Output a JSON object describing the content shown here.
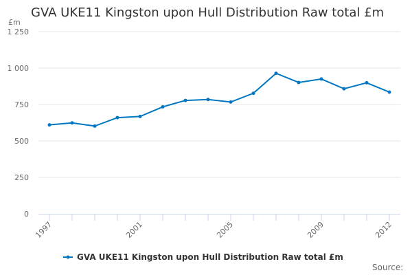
{
  "chart_data": {
    "type": "line",
    "title": "GVA UKE11 Kingston upon Hull Distribution Raw total £m",
    "ylabel": "£m",
    "xlabel": "",
    "x": [
      1997,
      1998,
      1999,
      2000,
      2001,
      2002,
      2003,
      2004,
      2005,
      2006,
      2007,
      2008,
      2009,
      2010,
      2011,
      2012
    ],
    "x_tick_labels": [
      "1997",
      "2001",
      "2005",
      "2009",
      "2012"
    ],
    "y_ticks": [
      0,
      250,
      500,
      750,
      1000,
      1250
    ],
    "y_tick_labels": [
      "0",
      "250",
      "500",
      "750",
      "1 000",
      "1 250"
    ],
    "ylim": [
      0,
      1250
    ],
    "grid": "horizontal",
    "legend_position": "bottom",
    "series": [
      {
        "name": "GVA UKE11 Kingston upon Hull Distribution Raw total £m",
        "color": "#0077c0",
        "values": [
          610,
          624,
          602,
          660,
          668,
          734,
          778,
          784,
          767,
          827,
          964,
          901,
          925,
          858,
          899,
          835
        ]
      }
    ]
  },
  "source_label": "Source:"
}
